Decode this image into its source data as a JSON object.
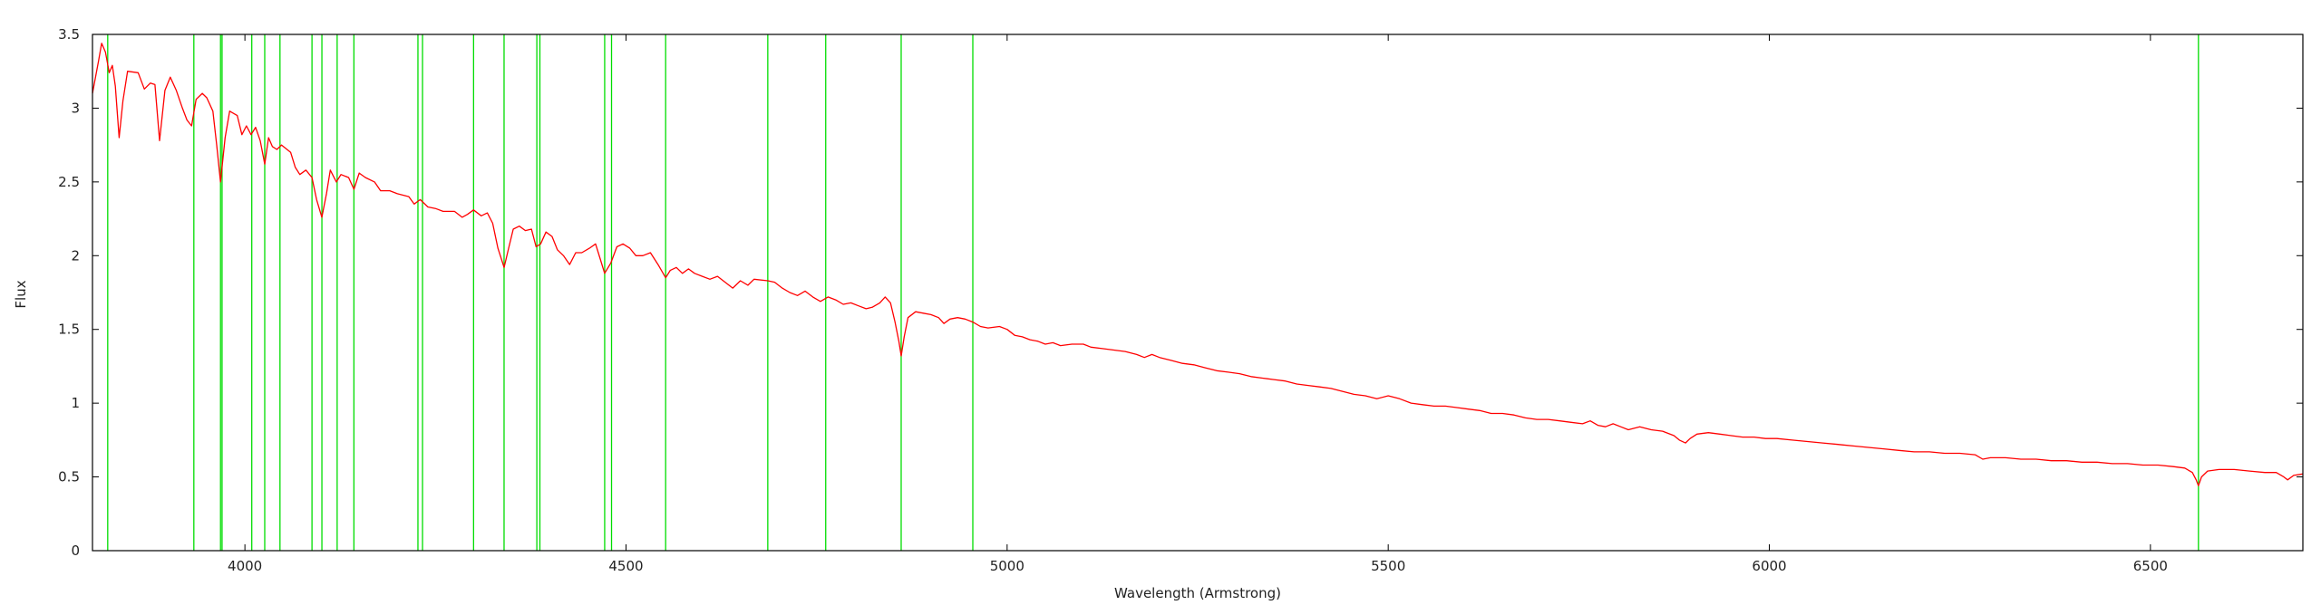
{
  "chart_data": {
    "type": "line",
    "title": "",
    "xlabel": "Wavelength (Armstrong)",
    "ylabel": "Flux",
    "xlim": [
      3800,
      6700
    ],
    "ylim": [
      0,
      3.5
    ],
    "xticks": [
      4000,
      4500,
      5000,
      5500,
      6000,
      6500
    ],
    "yticks": [
      0,
      0.5,
      1,
      1.5,
      2,
      2.5,
      3,
      3.5
    ],
    "xtick_labels": [
      "4000",
      "4500",
      "5000",
      "5500",
      "6000",
      "6500"
    ],
    "ytick_labels": [
      "0",
      "0.5",
      "1",
      "1.5",
      "2",
      "2.5",
      "3",
      "3.5"
    ],
    "grid": false,
    "legend": "none",
    "colors": {
      "spectrum": "#ff0000",
      "lines": "#00dd00",
      "axes": "#000000"
    },
    "line_markers": [
      3820,
      3933,
      3968,
      3970,
      4009,
      4026,
      4046,
      4088,
      4101,
      4121,
      4143,
      4227,
      4233,
      4300,
      4340,
      4383,
      4387,
      4472,
      4481,
      4552,
      4686,
      4762,
      4861,
      4955,
      6563
    ],
    "series": [
      {
        "points": [
          [
            3800,
            3.1
          ],
          [
            3808,
            3.32
          ],
          [
            3812,
            3.44
          ],
          [
            3817,
            3.38
          ],
          [
            3822,
            3.24
          ],
          [
            3826,
            3.29
          ],
          [
            3830,
            3.15
          ],
          [
            3835,
            2.8
          ],
          [
            3840,
            3.05
          ],
          [
            3846,
            3.25
          ],
          [
            3860,
            3.24
          ],
          [
            3868,
            3.13
          ],
          [
            3876,
            3.17
          ],
          [
            3882,
            3.16
          ],
          [
            3888,
            2.78
          ],
          [
            3895,
            3.12
          ],
          [
            3902,
            3.21
          ],
          [
            3910,
            3.12
          ],
          [
            3918,
            3.0
          ],
          [
            3924,
            2.92
          ],
          [
            3930,
            2.88
          ],
          [
            3936,
            3.06
          ],
          [
            3944,
            3.1
          ],
          [
            3950,
            3.07
          ],
          [
            3958,
            2.98
          ],
          [
            3963,
            2.75
          ],
          [
            3968,
            2.5
          ],
          [
            3974,
            2.8
          ],
          [
            3980,
            2.98
          ],
          [
            3990,
            2.95
          ],
          [
            3996,
            2.82
          ],
          [
            4002,
            2.88
          ],
          [
            4008,
            2.82
          ],
          [
            4014,
            2.87
          ],
          [
            4020,
            2.78
          ],
          [
            4026,
            2.62
          ],
          [
            4031,
            2.8
          ],
          [
            4036,
            2.74
          ],
          [
            4042,
            2.72
          ],
          [
            4048,
            2.75
          ],
          [
            4060,
            2.7
          ],
          [
            4066,
            2.6
          ],
          [
            4072,
            2.55
          ],
          [
            4080,
            2.58
          ],
          [
            4088,
            2.53
          ],
          [
            4094,
            2.38
          ],
          [
            4101,
            2.26
          ],
          [
            4107,
            2.42
          ],
          [
            4112,
            2.58
          ],
          [
            4120,
            2.5
          ],
          [
            4126,
            2.55
          ],
          [
            4136,
            2.53
          ],
          [
            4143,
            2.45
          ],
          [
            4150,
            2.56
          ],
          [
            4158,
            2.53
          ],
          [
            4170,
            2.5
          ],
          [
            4178,
            2.44
          ],
          [
            4190,
            2.44
          ],
          [
            4200,
            2.42
          ],
          [
            4215,
            2.4
          ],
          [
            4222,
            2.35
          ],
          [
            4230,
            2.38
          ],
          [
            4240,
            2.33
          ],
          [
            4250,
            2.32
          ],
          [
            4260,
            2.3
          ],
          [
            4275,
            2.3
          ],
          [
            4285,
            2.26
          ],
          [
            4292,
            2.28
          ],
          [
            4300,
            2.31
          ],
          [
            4310,
            2.27
          ],
          [
            4318,
            2.29
          ],
          [
            4325,
            2.22
          ],
          [
            4332,
            2.05
          ],
          [
            4340,
            1.92
          ],
          [
            4346,
            2.05
          ],
          [
            4352,
            2.18
          ],
          [
            4360,
            2.2
          ],
          [
            4368,
            2.17
          ],
          [
            4376,
            2.18
          ],
          [
            4382,
            2.06
          ],
          [
            4388,
            2.08
          ],
          [
            4395,
            2.16
          ],
          [
            4403,
            2.13
          ],
          [
            4410,
            2.04
          ],
          [
            4418,
            2.0
          ],
          [
            4426,
            1.94
          ],
          [
            4434,
            2.02
          ],
          [
            4442,
            2.02
          ],
          [
            4452,
            2.05
          ],
          [
            4460,
            2.08
          ],
          [
            4466,
            1.98
          ],
          [
            4472,
            1.88
          ],
          [
            4480,
            1.95
          ],
          [
            4488,
            2.06
          ],
          [
            4496,
            2.08
          ],
          [
            4505,
            2.05
          ],
          [
            4513,
            2.0
          ],
          [
            4522,
            2.0
          ],
          [
            4532,
            2.02
          ],
          [
            4542,
            1.94
          ],
          [
            4552,
            1.85
          ],
          [
            4558,
            1.9
          ],
          [
            4566,
            1.92
          ],
          [
            4574,
            1.88
          ],
          [
            4582,
            1.91
          ],
          [
            4590,
            1.88
          ],
          [
            4600,
            1.86
          ],
          [
            4610,
            1.84
          ],
          [
            4620,
            1.86
          ],
          [
            4630,
            1.82
          ],
          [
            4640,
            1.78
          ],
          [
            4650,
            1.83
          ],
          [
            4660,
            1.8
          ],
          [
            4668,
            1.84
          ],
          [
            4686,
            1.83
          ],
          [
            4695,
            1.82
          ],
          [
            4705,
            1.78
          ],
          [
            4715,
            1.75
          ],
          [
            4725,
            1.73
          ],
          [
            4735,
            1.76
          ],
          [
            4745,
            1.72
          ],
          [
            4755,
            1.69
          ],
          [
            4765,
            1.72
          ],
          [
            4775,
            1.7
          ],
          [
            4785,
            1.67
          ],
          [
            4795,
            1.68
          ],
          [
            4805,
            1.66
          ],
          [
            4815,
            1.64
          ],
          [
            4823,
            1.65
          ],
          [
            4833,
            1.68
          ],
          [
            4840,
            1.72
          ],
          [
            4847,
            1.68
          ],
          [
            4853,
            1.55
          ],
          [
            4858,
            1.42
          ],
          [
            4861,
            1.32
          ],
          [
            4865,
            1.45
          ],
          [
            4870,
            1.58
          ],
          [
            4880,
            1.62
          ],
          [
            4890,
            1.61
          ],
          [
            4900,
            1.6
          ],
          [
            4910,
            1.58
          ],
          [
            4917,
            1.54
          ],
          [
            4925,
            1.57
          ],
          [
            4935,
            1.58
          ],
          [
            4945,
            1.57
          ],
          [
            4955,
            1.55
          ],
          [
            4965,
            1.52
          ],
          [
            4975,
            1.51
          ],
          [
            4990,
            1.52
          ],
          [
            5000,
            1.5
          ],
          [
            5010,
            1.46
          ],
          [
            5020,
            1.45
          ],
          [
            5030,
            1.43
          ],
          [
            5040,
            1.42
          ],
          [
            5050,
            1.4
          ],
          [
            5060,
            1.41
          ],
          [
            5070,
            1.39
          ],
          [
            5085,
            1.4
          ],
          [
            5100,
            1.4
          ],
          [
            5110,
            1.38
          ],
          [
            5125,
            1.37
          ],
          [
            5140,
            1.36
          ],
          [
            5155,
            1.35
          ],
          [
            5170,
            1.33
          ],
          [
            5180,
            1.31
          ],
          [
            5190,
            1.33
          ],
          [
            5200,
            1.31
          ],
          [
            5215,
            1.29
          ],
          [
            5230,
            1.27
          ],
          [
            5245,
            1.26
          ],
          [
            5260,
            1.24
          ],
          [
            5275,
            1.22
          ],
          [
            5290,
            1.21
          ],
          [
            5305,
            1.2
          ],
          [
            5320,
            1.18
          ],
          [
            5335,
            1.17
          ],
          [
            5350,
            1.16
          ],
          [
            5365,
            1.15
          ],
          [
            5380,
            1.13
          ],
          [
            5395,
            1.12
          ],
          [
            5410,
            1.11
          ],
          [
            5425,
            1.1
          ],
          [
            5440,
            1.08
          ],
          [
            5455,
            1.06
          ],
          [
            5470,
            1.05
          ],
          [
            5485,
            1.03
          ],
          [
            5500,
            1.05
          ],
          [
            5515,
            1.03
          ],
          [
            5530,
            1.0
          ],
          [
            5545,
            0.99
          ],
          [
            5560,
            0.98
          ],
          [
            5575,
            0.98
          ],
          [
            5590,
            0.97
          ],
          [
            5605,
            0.96
          ],
          [
            5620,
            0.95
          ],
          [
            5635,
            0.93
          ],
          [
            5650,
            0.93
          ],
          [
            5665,
            0.92
          ],
          [
            5680,
            0.9
          ],
          [
            5695,
            0.89
          ],
          [
            5710,
            0.89
          ],
          [
            5725,
            0.88
          ],
          [
            5740,
            0.87
          ],
          [
            5755,
            0.86
          ],
          [
            5765,
            0.88
          ],
          [
            5775,
            0.85
          ],
          [
            5785,
            0.84
          ],
          [
            5795,
            0.86
          ],
          [
            5805,
            0.84
          ],
          [
            5815,
            0.82
          ],
          [
            5830,
            0.84
          ],
          [
            5845,
            0.82
          ],
          [
            5860,
            0.81
          ],
          [
            5875,
            0.78
          ],
          [
            5882,
            0.75
          ],
          [
            5890,
            0.73
          ],
          [
            5896,
            0.76
          ],
          [
            5905,
            0.79
          ],
          [
            5920,
            0.8
          ],
          [
            5935,
            0.79
          ],
          [
            5950,
            0.78
          ],
          [
            5965,
            0.77
          ],
          [
            5980,
            0.77
          ],
          [
            5995,
            0.76
          ],
          [
            6010,
            0.76
          ],
          [
            6030,
            0.75
          ],
          [
            6050,
            0.74
          ],
          [
            6070,
            0.73
          ],
          [
            6090,
            0.72
          ],
          [
            6110,
            0.71
          ],
          [
            6130,
            0.7
          ],
          [
            6150,
            0.69
          ],
          [
            6170,
            0.68
          ],
          [
            6190,
            0.67
          ],
          [
            6210,
            0.67
          ],
          [
            6230,
            0.66
          ],
          [
            6250,
            0.66
          ],
          [
            6270,
            0.65
          ],
          [
            6280,
            0.62
          ],
          [
            6290,
            0.63
          ],
          [
            6310,
            0.63
          ],
          [
            6330,
            0.62
          ],
          [
            6350,
            0.62
          ],
          [
            6370,
            0.61
          ],
          [
            6390,
            0.61
          ],
          [
            6410,
            0.6
          ],
          [
            6430,
            0.6
          ],
          [
            6450,
            0.59
          ],
          [
            6470,
            0.59
          ],
          [
            6490,
            0.58
          ],
          [
            6510,
            0.58
          ],
          [
            6530,
            0.57
          ],
          [
            6545,
            0.56
          ],
          [
            6555,
            0.53
          ],
          [
            6560,
            0.48
          ],
          [
            6563,
            0.44
          ],
          [
            6567,
            0.5
          ],
          [
            6575,
            0.54
          ],
          [
            6590,
            0.55
          ],
          [
            6610,
            0.55
          ],
          [
            6630,
            0.54
          ],
          [
            6650,
            0.53
          ],
          [
            6665,
            0.53
          ],
          [
            6675,
            0.5
          ],
          [
            6680,
            0.48
          ],
          [
            6688,
            0.51
          ],
          [
            6700,
            0.52
          ]
        ]
      }
    ]
  }
}
